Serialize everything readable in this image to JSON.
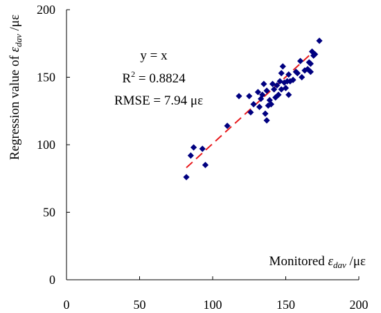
{
  "chart_data": {
    "type": "scatter",
    "xlabel": {
      "prefix": "Monitored ",
      "symbol": "ε",
      "sub": "dav",
      "suffix": " /με"
    },
    "ylabel": {
      "prefix": "Regression value of ",
      "symbol": "ε",
      "sub": "dav",
      "suffix": " /με"
    },
    "xlim": [
      0,
      200
    ],
    "ylim": [
      0,
      200
    ],
    "xticks": [
      "0",
      "50",
      "100",
      "150",
      "200"
    ],
    "yticks": [
      "0",
      "50",
      "100",
      "150",
      "200"
    ],
    "grid": false,
    "annotations": {
      "equation": "y = x",
      "r2_prefix": "R",
      "r2_sup": "2",
      "r2_value": " = 0.8824",
      "rmse": "RMSE = 7.94 με"
    },
    "marker_color": "#000080",
    "fit_line_color": "#e8191c",
    "fit_line": {
      "x": [
        82,
        168
      ],
      "y": [
        83,
        168
      ]
    },
    "points": [
      [
        82,
        76
      ],
      [
        85,
        92
      ],
      [
        87,
        98
      ],
      [
        93,
        97
      ],
      [
        95,
        85
      ],
      [
        110,
        114
      ],
      [
        118,
        136
      ],
      [
        125,
        136
      ],
      [
        126,
        124
      ],
      [
        128,
        130
      ],
      [
        131,
        139
      ],
      [
        132,
        128
      ],
      [
        133,
        134
      ],
      [
        134,
        137
      ],
      [
        135,
        145
      ],
      [
        136,
        123
      ],
      [
        137,
        118
      ],
      [
        137,
        140
      ],
      [
        138,
        129
      ],
      [
        139,
        133
      ],
      [
        140,
        130
      ],
      [
        141,
        145
      ],
      [
        142,
        141
      ],
      [
        143,
        135
      ],
      [
        144,
        144
      ],
      [
        145,
        137
      ],
      [
        146,
        147
      ],
      [
        147,
        141
      ],
      [
        147,
        153
      ],
      [
        148,
        158
      ],
      [
        149,
        146
      ],
      [
        150,
        142
      ],
      [
        151,
        147
      ],
      [
        152,
        137
      ],
      [
        152,
        152
      ],
      [
        153,
        147
      ],
      [
        155,
        148
      ],
      [
        157,
        154
      ],
      [
        158,
        153
      ],
      [
        160,
        162
      ],
      [
        161,
        150
      ],
      [
        163,
        155
      ],
      [
        165,
        156
      ],
      [
        166,
        161
      ],
      [
        167,
        154
      ],
      [
        167,
        160
      ],
      [
        168,
        169
      ],
      [
        169,
        166
      ],
      [
        170,
        167
      ],
      [
        173,
        177
      ]
    ]
  }
}
